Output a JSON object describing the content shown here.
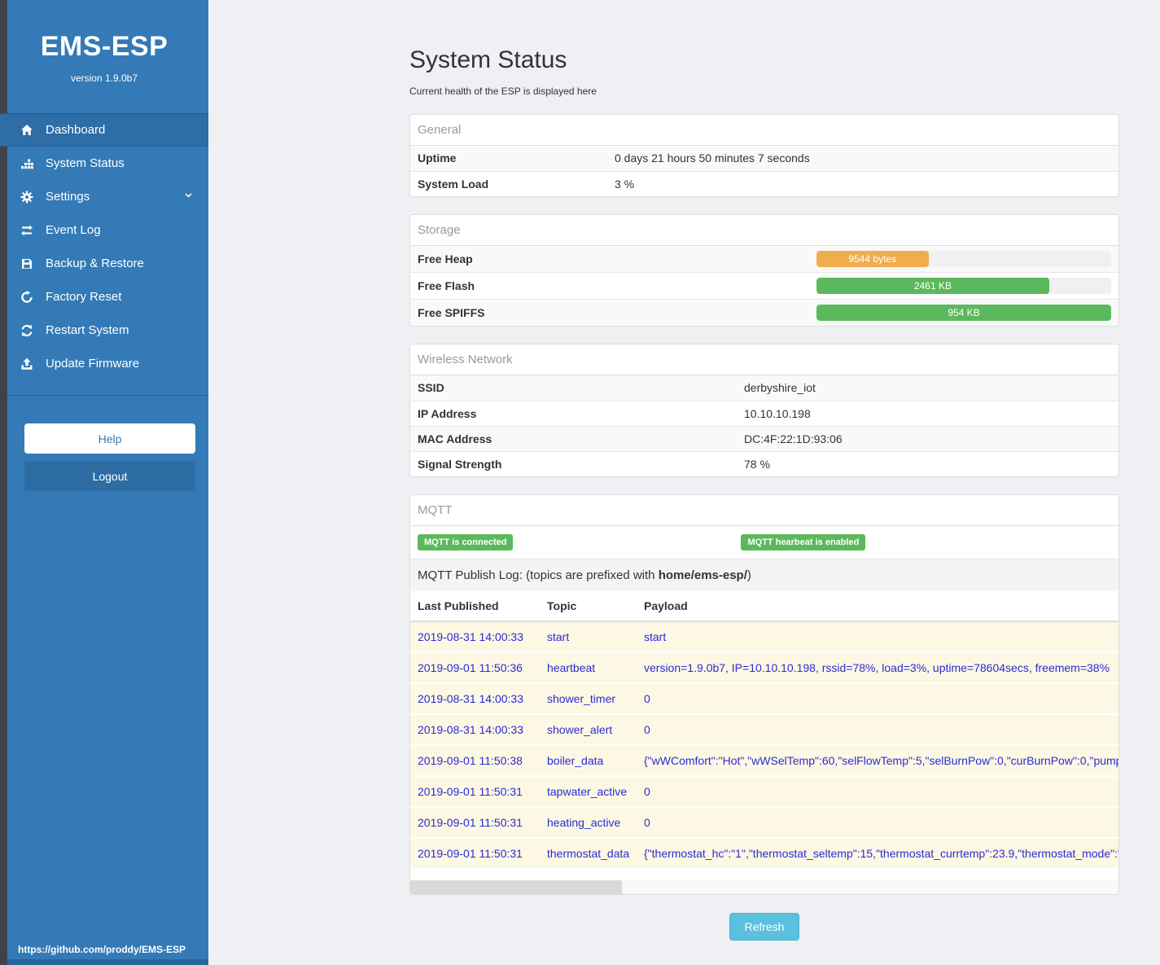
{
  "sidebar": {
    "title": "EMS-ESP",
    "version": "version 1.9.0b7",
    "items": [
      {
        "label": "Dashboard",
        "active": true
      },
      {
        "label": "System Status",
        "active": false
      },
      {
        "label": "Settings",
        "active": false
      },
      {
        "label": "Event Log",
        "active": false
      },
      {
        "label": "Backup & Restore",
        "active": false
      },
      {
        "label": "Factory Reset",
        "active": false
      },
      {
        "label": "Restart System",
        "active": false
      },
      {
        "label": "Update Firmware",
        "active": false
      }
    ],
    "help_label": "Help",
    "logout_label": "Logout",
    "footer_link": "https://github.com/proddy/EMS-ESP"
  },
  "page": {
    "title": "System Status",
    "subtitle": "Current health of the ESP is displayed here"
  },
  "general": {
    "header": "General",
    "rows": [
      {
        "label": "Uptime",
        "value": "0 days 21 hours 50 minutes 7 seconds"
      },
      {
        "label": "System Load",
        "value": "3 %"
      }
    ]
  },
  "storage": {
    "header": "Storage",
    "rows": [
      {
        "label": "Free Heap",
        "bar_label": "9544 bytes",
        "percent": 38,
        "color": "#f0ad4e"
      },
      {
        "label": "Free Flash",
        "bar_label": "2461 KB",
        "percent": 79,
        "color": "#5cb85c"
      },
      {
        "label": "Free SPIFFS",
        "bar_label": "954 KB",
        "percent": 100,
        "color": "#5cb85c"
      }
    ]
  },
  "wireless": {
    "header": "Wireless Network",
    "rows": [
      {
        "label": "SSID",
        "value": "derbyshire_iot"
      },
      {
        "label": "IP Address",
        "value": "10.10.10.198"
      },
      {
        "label": "MAC Address",
        "value": "DC:4F:22:1D:93:06"
      },
      {
        "label": "Signal Strength",
        "value": "78 %"
      }
    ]
  },
  "mqtt": {
    "header": "MQTT",
    "badges": [
      "MQTT is connected",
      "MQTT hearbeat is enabled"
    ],
    "publish_log": {
      "prefix": "MQTT Publish Log: (topics are prefixed with ",
      "bold": "home/ems-esp/",
      "suffix": ")"
    },
    "columns": [
      "Last Published",
      "Topic",
      "Payload"
    ],
    "rows": [
      {
        "published": "2019-08-31 14:00:33",
        "topic": "start",
        "payload": "start"
      },
      {
        "published": "2019-09-01 11:50:36",
        "topic": "heartbeat",
        "payload": "version=1.9.0b7, IP=10.10.10.198, rssid=78%, load=3%, uptime=78604secs, freemem=38%"
      },
      {
        "published": "2019-08-31 14:00:33",
        "topic": "shower_timer",
        "payload": "0"
      },
      {
        "published": "2019-08-31 14:00:33",
        "topic": "shower_alert",
        "payload": "0"
      },
      {
        "published": "2019-09-01 11:50:38",
        "topic": "boiler_data",
        "payload": "{\"wWComfort\":\"Hot\",\"wWSelTemp\":60,\"selFlowTemp\":5,\"selBurnPow\":0,\"curBurnPow\":0,\"pump"
      },
      {
        "published": "2019-09-01 11:50:31",
        "topic": "tapwater_active",
        "payload": "0"
      },
      {
        "published": "2019-09-01 11:50:31",
        "topic": "heating_active",
        "payload": "0"
      },
      {
        "published": "2019-09-01 11:50:31",
        "topic": "thermostat_data",
        "payload": "{\"thermostat_hc\":\"1\",\"thermostat_seltemp\":15,\"thermostat_currtemp\":23.9,\"thermostat_mode\":\""
      }
    ]
  },
  "refresh_label": "Refresh",
  "colors": {
    "sidebar": "#337ab7",
    "sidebar_active": "#2e6da6",
    "success": "#5cb85c",
    "warning": "#f0ad4e",
    "info_button": "#5bc0de",
    "row_highlight": "#fcf8e3",
    "log_text": "#2b2bd5"
  }
}
